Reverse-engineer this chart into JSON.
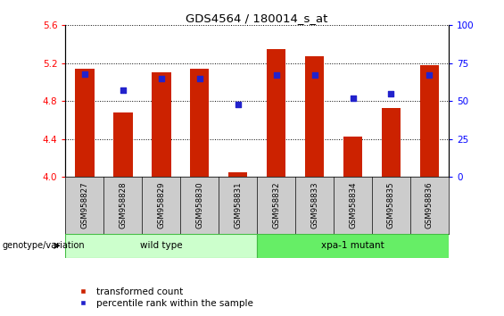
{
  "title": "GDS4564 / 180014_s_at",
  "samples": [
    "GSM958827",
    "GSM958828",
    "GSM958829",
    "GSM958830",
    "GSM958831",
    "GSM958832",
    "GSM958833",
    "GSM958834",
    "GSM958835",
    "GSM958836"
  ],
  "transformed_counts": [
    5.14,
    4.68,
    5.1,
    5.14,
    4.05,
    5.35,
    5.27,
    4.43,
    4.73,
    5.18
  ],
  "percentile_ranks": [
    68,
    57,
    65,
    65,
    48,
    67,
    67,
    52,
    55,
    67
  ],
  "ylim_left": [
    4.0,
    5.6
  ],
  "ylim_right": [
    0,
    100
  ],
  "yticks_left": [
    4.0,
    4.4,
    4.8,
    5.2,
    5.6
  ],
  "yticks_right": [
    0,
    25,
    50,
    75,
    100
  ],
  "bar_color": "#CC2200",
  "dot_color": "#2222CC",
  "group_labels": [
    "wild type",
    "xpa-1 mutant"
  ],
  "wt_color": "#CCFFCC",
  "mutant_color": "#66EE66",
  "genotype_label": "genotype/variation",
  "legend_items": [
    "transformed count",
    "percentile rank within the sample"
  ],
  "legend_colors": [
    "#CC2200",
    "#2222CC"
  ],
  "tick_area_color": "#CCCCCC",
  "bar_width": 0.5
}
